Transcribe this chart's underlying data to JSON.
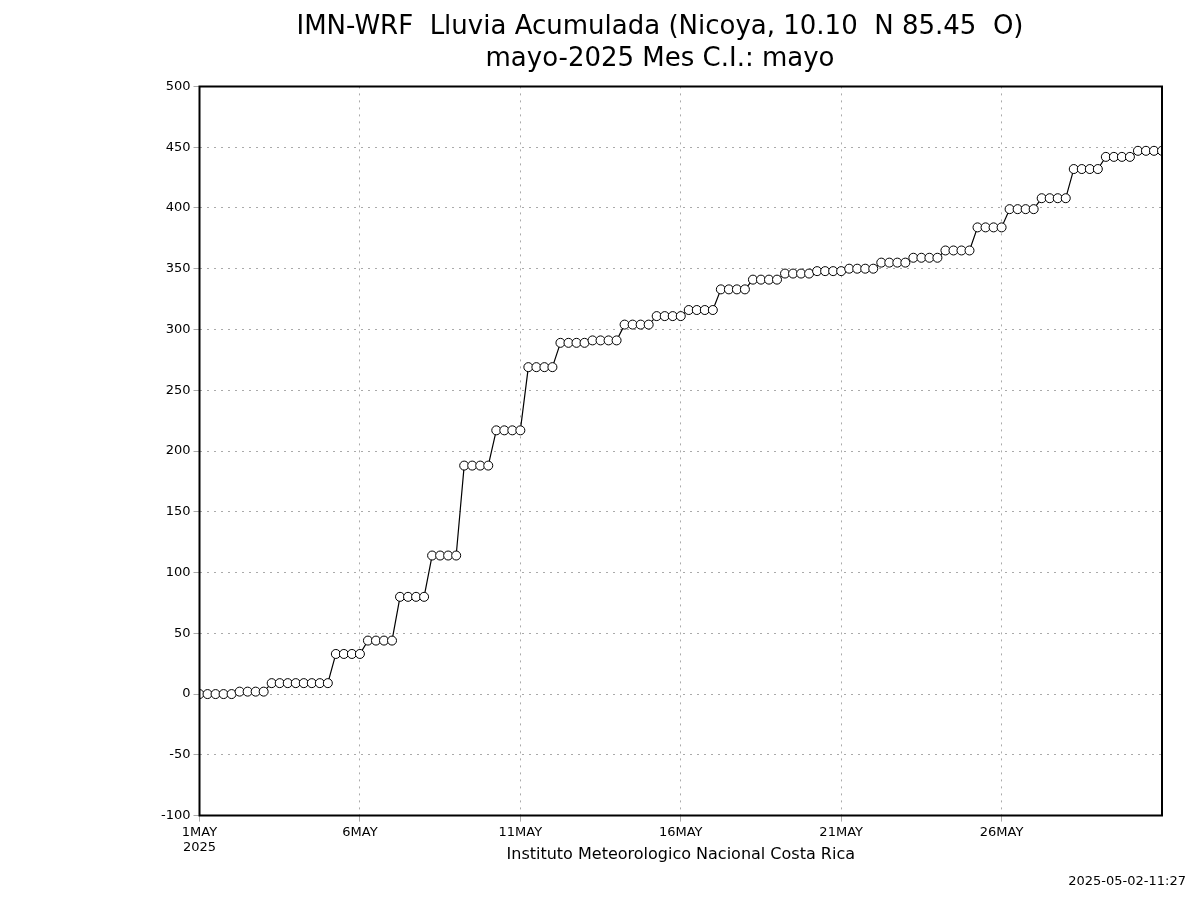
{
  "chart_data": {
    "type": "line",
    "title": "IMN-WRF  Lluvia Acumulada (Nicoya, 10.10  N 85.45  O)",
    "subtitle": "mayo-2025 Mes C.I.: mayo",
    "xlabel": "Instituto Meteorologico Nacional Costa Rica",
    "annotations": [
      "2025-05-02-11:27"
    ],
    "x": [
      "2025-05-01T00:00",
      "2025-05-01T06:00",
      "2025-05-01T12:00",
      "2025-05-01T18:00",
      "2025-05-02T00:00",
      "2025-05-02T06:00",
      "2025-05-02T12:00",
      "2025-05-02T18:00",
      "2025-05-03T00:00",
      "2025-05-03T06:00",
      "2025-05-03T12:00",
      "2025-05-03T18:00",
      "2025-05-04T00:00",
      "2025-05-04T06:00",
      "2025-05-04T12:00",
      "2025-05-04T18:00",
      "2025-05-05T00:00",
      "2025-05-05T06:00",
      "2025-05-05T12:00",
      "2025-05-05T18:00",
      "2025-05-06T00:00",
      "2025-05-06T06:00",
      "2025-05-06T12:00",
      "2025-05-06T18:00",
      "2025-05-07T00:00",
      "2025-05-07T06:00",
      "2025-05-07T12:00",
      "2025-05-07T18:00",
      "2025-05-08T00:00",
      "2025-05-08T06:00",
      "2025-05-08T12:00",
      "2025-05-08T18:00",
      "2025-05-09T00:00",
      "2025-05-09T06:00",
      "2025-05-09T12:00",
      "2025-05-09T18:00",
      "2025-05-10T00:00",
      "2025-05-10T06:00",
      "2025-05-10T12:00",
      "2025-05-10T18:00",
      "2025-05-11T00:00",
      "2025-05-11T06:00",
      "2025-05-11T12:00",
      "2025-05-11T18:00",
      "2025-05-12T00:00",
      "2025-05-12T06:00",
      "2025-05-12T12:00",
      "2025-05-12T18:00",
      "2025-05-13T00:00",
      "2025-05-13T06:00",
      "2025-05-13T12:00",
      "2025-05-13T18:00",
      "2025-05-14T00:00",
      "2025-05-14T06:00",
      "2025-05-14T12:00",
      "2025-05-14T18:00",
      "2025-05-15T00:00",
      "2025-05-15T06:00",
      "2025-05-15T12:00",
      "2025-05-15T18:00",
      "2025-05-16T00:00",
      "2025-05-16T06:00",
      "2025-05-16T12:00",
      "2025-05-16T18:00",
      "2025-05-17T00:00",
      "2025-05-17T06:00",
      "2025-05-17T12:00",
      "2025-05-17T18:00",
      "2025-05-18T00:00",
      "2025-05-18T06:00",
      "2025-05-18T12:00",
      "2025-05-18T18:00",
      "2025-05-19T00:00",
      "2025-05-19T06:00",
      "2025-05-19T12:00",
      "2025-05-19T18:00",
      "2025-05-20T00:00",
      "2025-05-20T06:00",
      "2025-05-20T12:00",
      "2025-05-20T18:00",
      "2025-05-21T00:00",
      "2025-05-21T06:00",
      "2025-05-21T12:00",
      "2025-05-21T18:00",
      "2025-05-22T00:00",
      "2025-05-22T06:00",
      "2025-05-22T12:00",
      "2025-05-22T18:00",
      "2025-05-23T00:00",
      "2025-05-23T06:00",
      "2025-05-23T12:00",
      "2025-05-23T18:00",
      "2025-05-24T00:00",
      "2025-05-24T06:00",
      "2025-05-24T12:00",
      "2025-05-24T18:00",
      "2025-05-25T00:00",
      "2025-05-25T06:00",
      "2025-05-25T12:00",
      "2025-05-25T18:00",
      "2025-05-26T00:00",
      "2025-05-26T06:00",
      "2025-05-26T12:00",
      "2025-05-26T18:00",
      "2025-05-27T00:00",
      "2025-05-27T06:00",
      "2025-05-27T12:00",
      "2025-05-27T18:00",
      "2025-05-28T00:00",
      "2025-05-28T06:00",
      "2025-05-28T12:00",
      "2025-05-28T18:00",
      "2025-05-29T00:00",
      "2025-05-29T06:00",
      "2025-05-29T12:00",
      "2025-05-29T18:00",
      "2025-05-30T00:00",
      "2025-05-30T06:00",
      "2025-05-30T12:00",
      "2025-05-30T18:00",
      "2025-05-31T00:00"
    ],
    "series": [
      {
        "color": "#000000",
        "values": [
          0,
          0,
          0,
          0,
          0,
          2,
          2,
          2,
          2,
          9,
          9,
          9,
          9,
          9,
          9,
          9,
          9,
          33,
          33,
          33,
          33,
          44,
          44,
          44,
          44,
          80,
          80,
          80,
          80,
          114,
          114,
          114,
          114,
          188,
          188,
          188,
          188,
          217,
          217,
          217,
          217,
          269,
          269,
          269,
          269,
          289,
          289,
          289,
          289,
          291,
          291,
          291,
          291,
          304,
          304,
          304,
          304,
          311,
          311,
          311,
          311,
          316,
          316,
          316,
          316,
          333,
          333,
          333,
          333,
          341,
          341,
          341,
          341,
          346,
          346,
          346,
          346,
          348,
          348,
          348,
          348,
          350,
          350,
          350,
          350,
          355,
          355,
          355,
          355,
          359,
          359,
          359,
          359,
          365,
          365,
          365,
          365,
          384,
          384,
          384,
          384,
          399,
          399,
          399,
          399,
          408,
          408,
          408,
          408,
          432,
          432,
          432,
          432,
          442,
          442,
          442,
          442,
          447,
          447,
          447,
          447
        ]
      }
    ],
    "xlim": [
      "2025-05-01T00:00",
      "2025-05-31T00:00"
    ],
    "xticks": [
      {
        "value": "2025-05-01",
        "label": "1MAY 2025"
      },
      {
        "value": "2025-05-06",
        "label": "6MAY"
      },
      {
        "value": "2025-05-11",
        "label": "11MAY"
      },
      {
        "value": "2025-05-16",
        "label": "16MAY"
      },
      {
        "value": "2025-05-21",
        "label": "21MAY"
      },
      {
        "value": "2025-05-26",
        "label": "26MAY"
      }
    ],
    "ylim": [
      -100,
      500
    ],
    "yticks": [
      -100,
      -50,
      0,
      50,
      100,
      150,
      200,
      250,
      300,
      350,
      400,
      450,
      500
    ],
    "grid": true,
    "marker": "circle",
    "line_style": "solid",
    "legend": false
  }
}
